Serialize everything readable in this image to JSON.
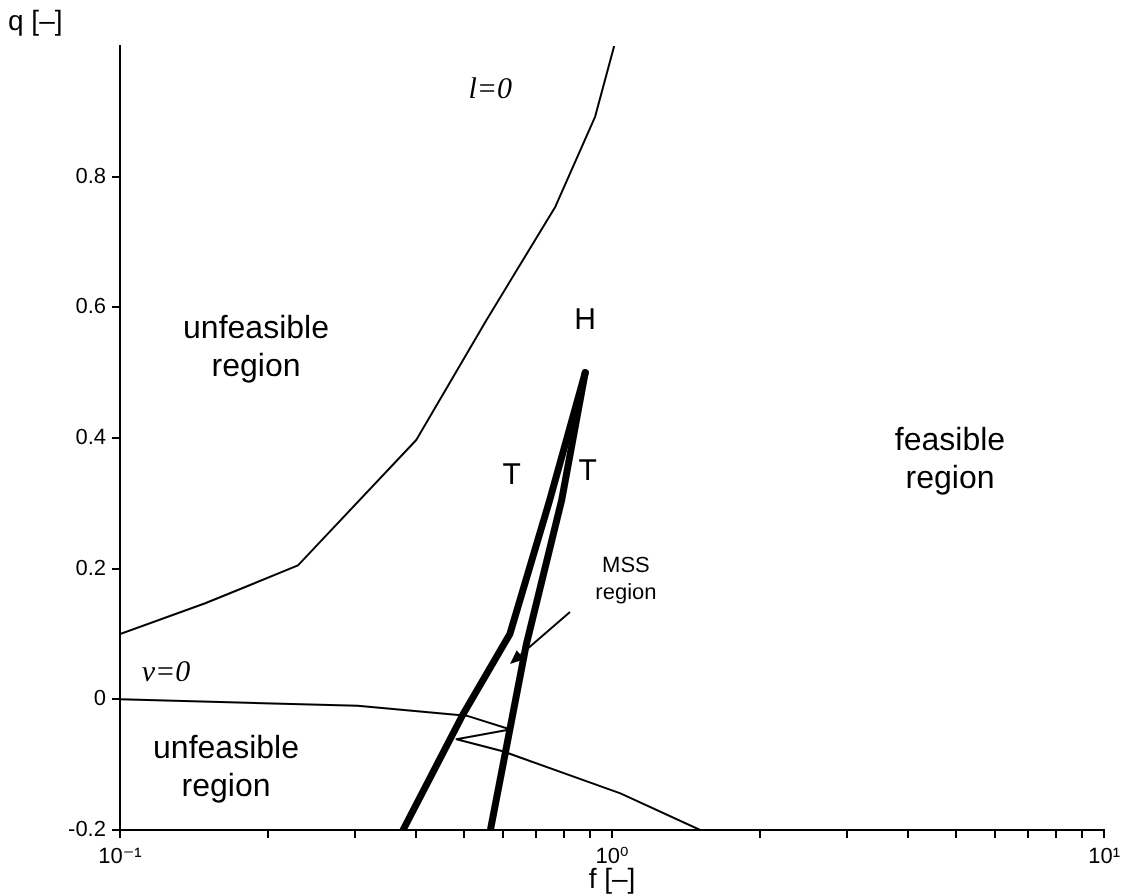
{
  "chart_data": {
    "type": "line",
    "xlabel": "f [–]",
    "ylabel": "q [–]",
    "log": "x",
    "grid": false,
    "legend": false,
    "marker": "none",
    "line_style": "solid",
    "xlim": [
      0.1,
      10
    ],
    "ylim": [
      -0.2,
      1
    ],
    "xticks": [
      {
        "value": 0.1,
        "label": "10⁻¹"
      },
      {
        "value": 0.2,
        "label": null
      },
      {
        "value": 0.3,
        "label": null
      },
      {
        "value": 0.4,
        "label": null
      },
      {
        "value": 0.5,
        "label": null
      },
      {
        "value": 0.6,
        "label": null
      },
      {
        "value": 0.7,
        "label": null
      },
      {
        "value": 0.8,
        "label": null
      },
      {
        "value": 0.9,
        "label": null
      },
      {
        "value": 1,
        "label": "10⁰"
      },
      {
        "value": 2,
        "label": null
      },
      {
        "value": 3,
        "label": null
      },
      {
        "value": 4,
        "label": null
      },
      {
        "value": 5,
        "label": null
      },
      {
        "value": 6,
        "label": null
      },
      {
        "value": 7,
        "label": null
      },
      {
        "value": 8,
        "label": null
      },
      {
        "value": 9,
        "label": null
      },
      {
        "value": 10,
        "label": "10¹"
      }
    ],
    "yticks": [
      -0.2,
      0,
      0.2,
      0.4,
      0.6,
      0.8
    ],
    "series": [
      {
        "name": "l=0",
        "color": "#000000",
        "x": [
          0.1,
          0.149,
          0.23,
          0.4,
          0.555,
          0.767,
          0.924,
          1.01
        ],
        "values": [
          0.1,
          0.147,
          0.205,
          0.397,
          0.58,
          0.754,
          0.892,
          1.0
        ]
      },
      {
        "name": "v=0",
        "color": "#000000",
        "x": [
          0.1,
          0.304,
          0.506,
          0.62,
          0.483,
          0.597,
          1.04,
          1.51
        ],
        "values": [
          0,
          -0.01,
          -0.025,
          -0.046,
          -0.061,
          -0.079,
          -0.144,
          -0.2
        ]
      },
      {
        "name": "T",
        "color": "#000000",
        "x": [
          0.376,
          0.497,
          0.62,
          0.747,
          0.882
        ],
        "values": [
          -0.2,
          -0.024,
          0.1,
          0.305,
          0.5
        ]
      },
      {
        "name": "T",
        "color": "#000000",
        "x": [
          0.566,
          0.669,
          0.79,
          0.882
        ],
        "values": [
          -0.2,
          0.083,
          0.305,
          0.5
        ]
      }
    ],
    "annotations": [
      {
        "text": "H",
        "x": 0.882,
        "y": 0.5
      },
      "unfeasible region",
      "unfeasible region",
      "feasible region",
      {
        "text": "MSS region",
        "x": 0.62,
        "y": 0.055
      }
    ]
  }
}
